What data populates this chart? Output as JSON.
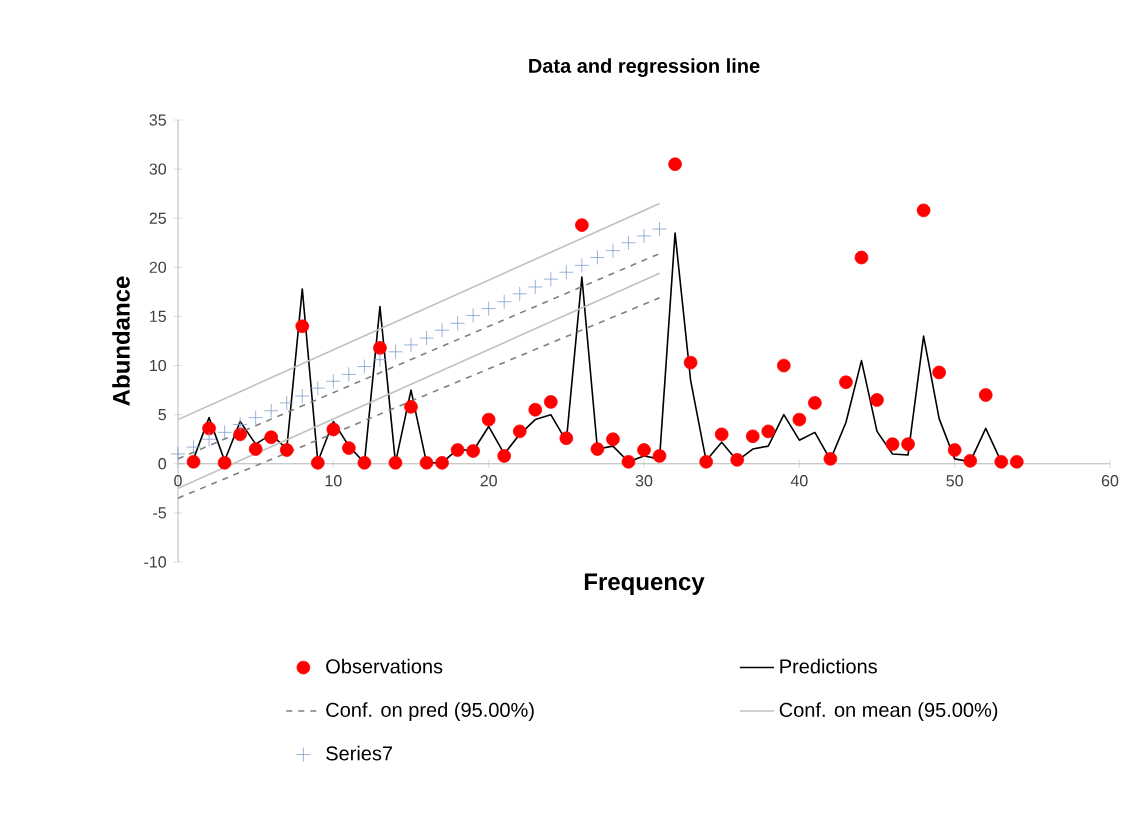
{
  "chart_data": {
    "type": "scatter",
    "title": "Data and regression line",
    "xlabel": "Frequency",
    "ylabel": "Abundance",
    "xlim": [
      0,
      60
    ],
    "xticks": [
      0,
      10,
      20,
      30,
      40,
      50,
      60
    ],
    "ylim": [
      -10,
      35
    ],
    "yticks": [
      -10,
      -5,
      0,
      5,
      10,
      15,
      20,
      25,
      30,
      35
    ],
    "grid": false,
    "legend": "bottom",
    "series": [
      {
        "name": "Observations",
        "type": "scatter",
        "marker": "circle",
        "color": "#ff0000",
        "x": [
          1,
          2,
          3,
          4,
          5,
          6,
          7,
          8,
          9,
          10,
          11,
          12,
          13,
          14,
          15,
          16,
          17,
          18,
          19,
          20,
          21,
          22,
          23,
          24,
          25,
          26,
          27,
          28,
          29,
          30,
          31,
          32,
          33,
          34,
          35,
          36,
          37,
          38,
          39,
          40,
          41,
          42,
          43,
          44,
          45,
          46,
          47,
          48,
          49,
          50,
          51,
          52,
          53,
          54
        ],
        "values": [
          0.2,
          3.6,
          0.1,
          3.0,
          1.5,
          2.7,
          1.4,
          14,
          0.1,
          3.5,
          1.6,
          0.1,
          11.8,
          0.1,
          5.8,
          0.1,
          0.1,
          1.4,
          1.3,
          4.5,
          0.8,
          3.3,
          5.5,
          6.3,
          2.6,
          24.3,
          1.5,
          2.5,
          0.2,
          1.4,
          0.8,
          30.5,
          10.3,
          0.2,
          3.0,
          0.4,
          2.8,
          3.3,
          10.0,
          4.5,
          6.2,
          0.5,
          8.3,
          21,
          6.5,
          2.0,
          2.0,
          25.8,
          9.3,
          1.4,
          0.3,
          7,
          0.2,
          0.2
        ]
      },
      {
        "name": "Predictions",
        "type": "line",
        "marker": "none",
        "line_style": "solid",
        "color": "#000000",
        "x": [
          1,
          2,
          3,
          4,
          5,
          6,
          7,
          8,
          9,
          10,
          11,
          12,
          13,
          14,
          15,
          16,
          17,
          18,
          19,
          20,
          21,
          22,
          23,
          24,
          25,
          26,
          27,
          28,
          29,
          30,
          31,
          32,
          33,
          34,
          35,
          36,
          37,
          38,
          39,
          40,
          41,
          42,
          43,
          44,
          45,
          46,
          47,
          48,
          49,
          50,
          51,
          52,
          53
        ],
        "values": [
          0.5,
          4.7,
          0.3,
          4.3,
          2.0,
          3.0,
          1.5,
          17.8,
          0.2,
          4.3,
          1.8,
          0.1,
          16,
          0.1,
          7.5,
          0.1,
          0.1,
          1.5,
          1.3,
          3.8,
          1.0,
          3.0,
          4.5,
          5.0,
          2.3,
          19,
          1.5,
          1.8,
          0.2,
          0.8,
          0.5,
          23.5,
          8.5,
          0.3,
          2.2,
          0.3,
          1.5,
          1.8,
          5.0,
          2.4,
          3.2,
          0.4,
          4.2,
          10.5,
          3.3,
          1.0,
          0.9,
          13,
          4.6,
          0.5,
          0.2,
          3.6,
          0.2
        ]
      },
      {
        "name": "Conf. on pred (95.00%)",
        "type": "line",
        "marker": "none",
        "line_style": "dashed",
        "color": "#808080",
        "x": [
          0,
          31
        ],
        "values": [
          0.5,
          21.4
        ]
      },
      {
        "type": "line",
        "marker": "none",
        "line_style": "dashed",
        "color": "#808080",
        "x": [
          0,
          31
        ],
        "values": [
          -3.5,
          16.9
        ]
      },
      {
        "name": "Conf. on mean (95.00%)",
        "type": "line",
        "marker": "none",
        "line_style": "solid",
        "color": "#c0c0c0",
        "x": [
          0,
          31
        ],
        "values": [
          4.5,
          26.5
        ]
      },
      {
        "type": "line",
        "marker": "none",
        "line_style": "solid",
        "color": "#c0c0c0",
        "x": [
          0,
          31
        ],
        "values": [
          -2.5,
          19.4
        ]
      },
      {
        "name": "Series7",
        "type": "scatter",
        "marker": "cross",
        "color": "#7f9fcf",
        "x": [
          0,
          1,
          2,
          3,
          4,
          5,
          6,
          7,
          8,
          9,
          10,
          11,
          12,
          13,
          14,
          15,
          16,
          17,
          18,
          19,
          20,
          21,
          22,
          23,
          24,
          25,
          26,
          27,
          28,
          29,
          30,
          31
        ],
        "values": [
          1.0,
          1.7,
          2.5,
          3.2,
          4.0,
          4.7,
          5.4,
          6.2,
          6.9,
          7.7,
          8.4,
          9.1,
          9.9,
          10.6,
          11.4,
          12.1,
          12.8,
          13.6,
          14.3,
          15.1,
          15.8,
          16.5,
          17.3,
          18.0,
          18.8,
          19.5,
          20.2,
          21.0,
          21.7,
          22.5,
          23.2,
          23.9
        ]
      }
    ]
  }
}
